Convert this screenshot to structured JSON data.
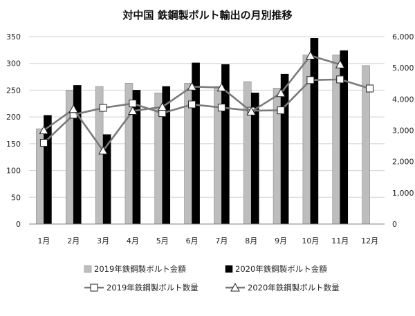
{
  "chart_data": {
    "type": "bar",
    "title": "対中国 鉄鋼製ボルト輸出の月別推移",
    "categories": [
      "1月",
      "2月",
      "3月",
      "4月",
      "5月",
      "6月",
      "7月",
      "8月",
      "9月",
      "10月",
      "11月",
      "12月"
    ],
    "y_left": {
      "min": 0,
      "max": 350,
      "ticks": [
        "0",
        "50",
        "100",
        "150",
        "200",
        "250",
        "300",
        "350"
      ]
    },
    "y_right": {
      "min": 0,
      "max": 6000,
      "ticks": [
        "0",
        "1,000",
        "2,000",
        "3,000",
        "4,000",
        "5,000",
        "6,000"
      ]
    },
    "grid": true,
    "legend_position": "bottom",
    "bar_series": [
      {
        "name": "2019年鉄鋼製ボルト金額",
        "axis": "left",
        "color": "#bdbdbd",
        "values": [
          178,
          250,
          257,
          263,
          245,
          263,
          257,
          266,
          254,
          316,
          316,
          296
        ]
      },
      {
        "name": "2020年鉄鋼製ボルト金額",
        "axis": "left",
        "color": "#000000",
        "values": [
          203,
          259,
          167,
          250,
          257,
          301,
          298,
          245,
          280,
          347,
          324,
          null
        ]
      }
    ],
    "line_series": [
      {
        "name": "2019年鉄鋼製ボルト数量",
        "axis": "right",
        "marker": "square",
        "color": "#7a7a7a",
        "values": [
          2600,
          3500,
          3720,
          3860,
          3550,
          3830,
          3730,
          3630,
          3640,
          4610,
          4630,
          4340
        ]
      },
      {
        "name": "2020年鉄鋼製ボルト数量",
        "axis": "right",
        "marker": "triangle",
        "color": "#7a7a7a",
        "values": [
          3000,
          3680,
          2350,
          3620,
          3750,
          4400,
          4370,
          3600,
          4190,
          5390,
          5110,
          null
        ]
      }
    ]
  }
}
